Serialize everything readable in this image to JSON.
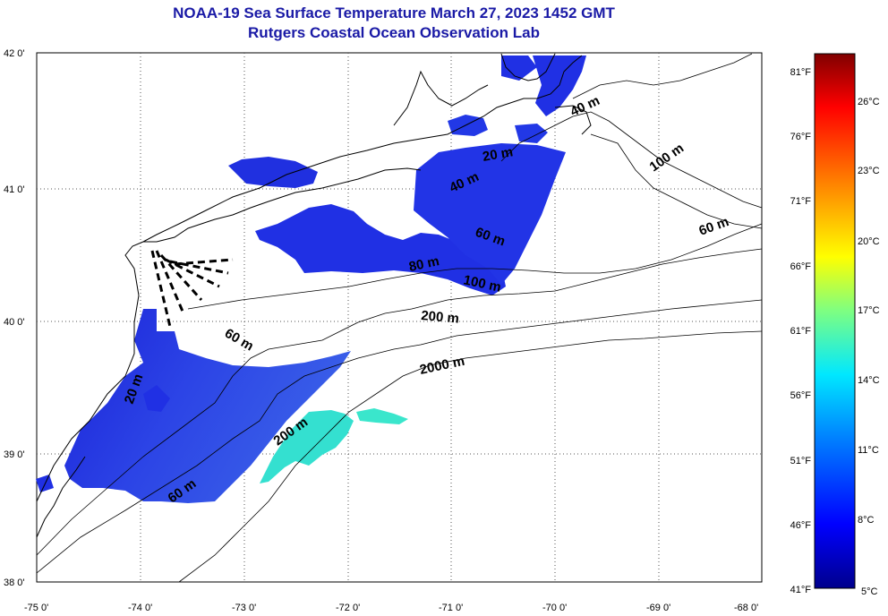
{
  "title": "NOAA-19 Sea Surface Temperature March 27, 2023 1452 GMT",
  "subtitle": "Rutgers Coastal Ocean Observation Lab",
  "lon_labels": [
    "-75 0'",
    "-74 0'",
    "-73 0'",
    "-72 0'",
    "-71 0'",
    "-70 0'",
    "-69 0'",
    "-68 0'"
  ],
  "lat_labels": [
    "42 0'",
    "41 0'",
    "40 0'",
    "39 0'",
    "38 0'"
  ],
  "colorbar": {
    "f_labels": [
      "81°F",
      "76°F",
      "71°F",
      "66°F",
      "61°F",
      "56°F",
      "51°F",
      "46°F",
      "41°F"
    ],
    "c_labels": [
      "26°C",
      "23°C",
      "20°C",
      "17°C",
      "14°C",
      "11°C",
      "8°C",
      "5°C"
    ]
  },
  "depth_labels": [
    "20 m",
    "40 m",
    "60 m",
    "100 m",
    "60 m",
    "80 m",
    "100 m",
    "200 m",
    "60 m",
    "2000 m",
    "20 m",
    "200 m",
    "60 m",
    "40 m"
  ],
  "colors": {
    "title": "#1a1aa6",
    "sst_cold": "#1f2fe6",
    "sst_mid": "#3a6be8",
    "sst_warm": "#34e0d0"
  }
}
